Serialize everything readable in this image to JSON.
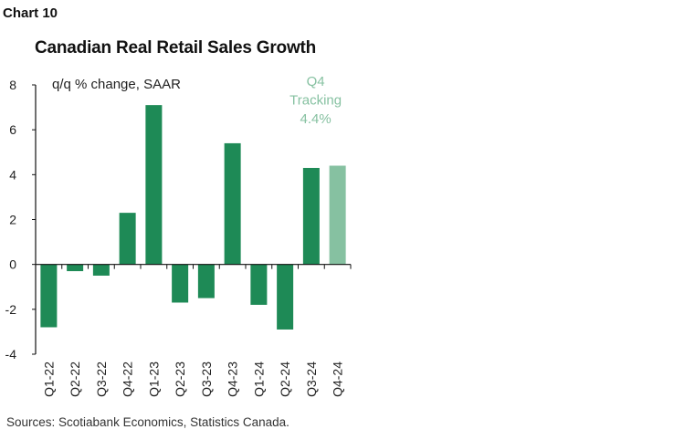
{
  "header": {
    "chart_number": "Chart 10"
  },
  "footer": {
    "source": "Sources: Scotiabank Economics, Statistics Canada."
  },
  "colors": {
    "actual": "#1e8a56",
    "tracking": "#86c1a1",
    "axis": "#111111"
  },
  "chart_data": {
    "type": "bar",
    "title": "Canadian Real Retail Sales Growth",
    "subtitle": "q/q % change, SAAR",
    "xlabel": "",
    "ylabel": "",
    "categories": [
      "Q1-22",
      "Q2-22",
      "Q3-22",
      "Q4-22",
      "Q1-23",
      "Q2-23",
      "Q3-23",
      "Q4-23",
      "Q1-24",
      "Q2-24",
      "Q3-24",
      "Q4-24"
    ],
    "series": [
      {
        "values": [
          -2.8,
          -0.3,
          -0.5,
          2.3,
          7.1,
          -1.7,
          -1.5,
          5.4,
          -1.8,
          -2.9,
          4.3,
          4.4
        ],
        "tracking_flags": [
          false,
          false,
          false,
          false,
          false,
          false,
          false,
          false,
          false,
          false,
          false,
          true
        ]
      }
    ],
    "ylim": [
      -4,
      8
    ],
    "yticks": [
      -4,
      -2,
      0,
      2,
      4,
      6,
      8
    ],
    "grid": false,
    "annotation": {
      "lines": [
        "Q4",
        "Tracking",
        "4.4%"
      ],
      "category": "Q4-24"
    }
  }
}
